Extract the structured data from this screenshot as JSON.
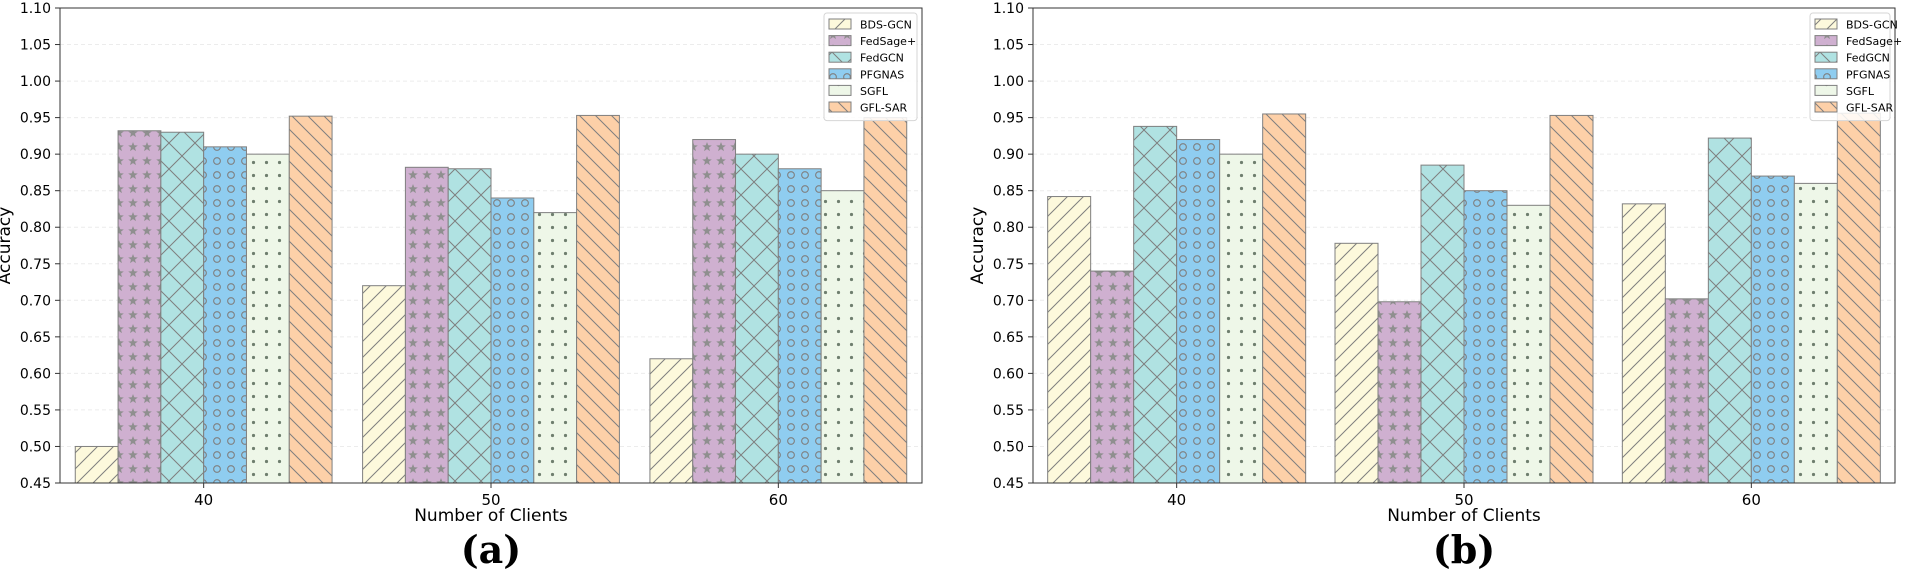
{
  "chart_data": [
    {
      "type": "bar",
      "panel_label": "(a)",
      "xlabel": "Number of Clients",
      "ylabel": "Accuracy",
      "ylim": [
        0.45,
        1.1
      ],
      "yticks": [
        "0.45",
        "0.50",
        "0.55",
        "0.60",
        "0.65",
        "0.70",
        "0.75",
        "0.80",
        "0.85",
        "0.90",
        "0.95",
        "1.00",
        "1.05",
        "1.10"
      ],
      "grid": true,
      "legend_position": "top-right",
      "categories": [
        "40",
        "50",
        "60"
      ],
      "series": [
        {
          "name": "BDS-GCN",
          "values": [
            0.5,
            0.72,
            0.62
          ]
        },
        {
          "name": "FedSage+",
          "values": [
            0.932,
            0.882,
            0.92
          ]
        },
        {
          "name": "FedGCN",
          "values": [
            0.93,
            0.88,
            0.9
          ]
        },
        {
          "name": "PFGNAS",
          "values": [
            0.91,
            0.84,
            0.88
          ]
        },
        {
          "name": "SGFL",
          "values": [
            0.9,
            0.82,
            0.85
          ]
        },
        {
          "name": "GFL-SAR",
          "values": [
            0.952,
            0.953,
            0.95
          ]
        }
      ]
    },
    {
      "type": "bar",
      "panel_label": "(b)",
      "xlabel": "Number of Clients",
      "ylabel": "Accuracy",
      "ylim": [
        0.45,
        1.1
      ],
      "yticks": [
        "0.45",
        "0.50",
        "0.55",
        "0.60",
        "0.65",
        "0.70",
        "0.75",
        "0.80",
        "0.85",
        "0.90",
        "0.95",
        "1.00",
        "1.05",
        "1.10"
      ],
      "grid": true,
      "legend_position": "top-right",
      "categories": [
        "40",
        "50",
        "60"
      ],
      "series": [
        {
          "name": "BDS-GCN",
          "values": [
            0.842,
            0.778,
            0.832
          ]
        },
        {
          "name": "FedSage+",
          "values": [
            0.74,
            0.698,
            0.702
          ]
        },
        {
          "name": "FedGCN",
          "values": [
            0.938,
            0.885,
            0.922
          ]
        },
        {
          "name": "PFGNAS",
          "values": [
            0.92,
            0.85,
            0.87
          ]
        },
        {
          "name": "SGFL",
          "values": [
            0.9,
            0.83,
            0.86
          ]
        },
        {
          "name": "GFL-SAR",
          "values": [
            0.955,
            0.953,
            0.956
          ]
        }
      ]
    }
  ],
  "styles": [
    {
      "fill": "#fdf9dc",
      "pattern": "diag-up"
    },
    {
      "fill": "#cfb0d0",
      "pattern": "stars"
    },
    {
      "fill": "#b0e2e2",
      "pattern": "cross"
    },
    {
      "fill": "#8fcdf0",
      "pattern": "rings"
    },
    {
      "fill": "#eef7e8",
      "pattern": "dots"
    },
    {
      "fill": "#fdd0a8",
      "pattern": "diag-down"
    }
  ]
}
